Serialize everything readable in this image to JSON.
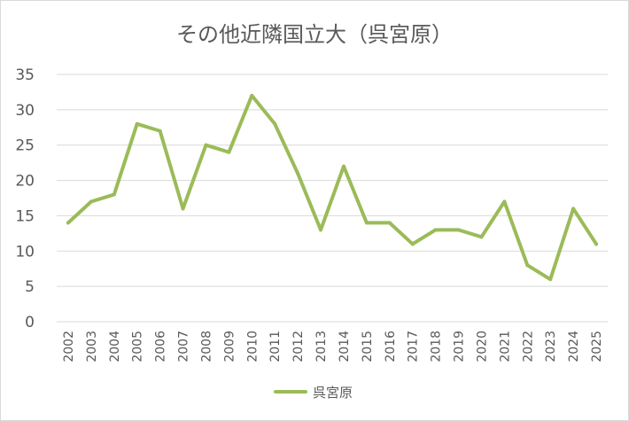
{
  "chart_data": {
    "type": "line",
    "title": "その他近隣国立大（呉宮原）",
    "xlabel": "",
    "ylabel": "",
    "categories": [
      "2002",
      "2003",
      "2004",
      "2005",
      "2006",
      "2007",
      "2008",
      "2009",
      "2010",
      "2011",
      "2012",
      "2013",
      "2014",
      "2015",
      "2016",
      "2017",
      "2018",
      "2019",
      "2020",
      "2021",
      "2022",
      "2023",
      "2024",
      "2025"
    ],
    "series": [
      {
        "name": "呉宮原",
        "values": [
          14,
          17,
          18,
          28,
          27,
          16,
          25,
          24,
          32,
          28,
          21,
          13,
          22,
          14,
          14,
          11,
          13,
          13,
          12,
          17,
          8,
          6,
          16,
          11
        ]
      }
    ],
    "ylim": [
      0,
      35
    ],
    "yticks": [
      0,
      5,
      10,
      15,
      20,
      25,
      30,
      35
    ],
    "grid": true,
    "legend_position": "bottom",
    "colors": {
      "series": "#9bbb59",
      "grid": "#d9d9d9",
      "text": "#595959"
    }
  }
}
